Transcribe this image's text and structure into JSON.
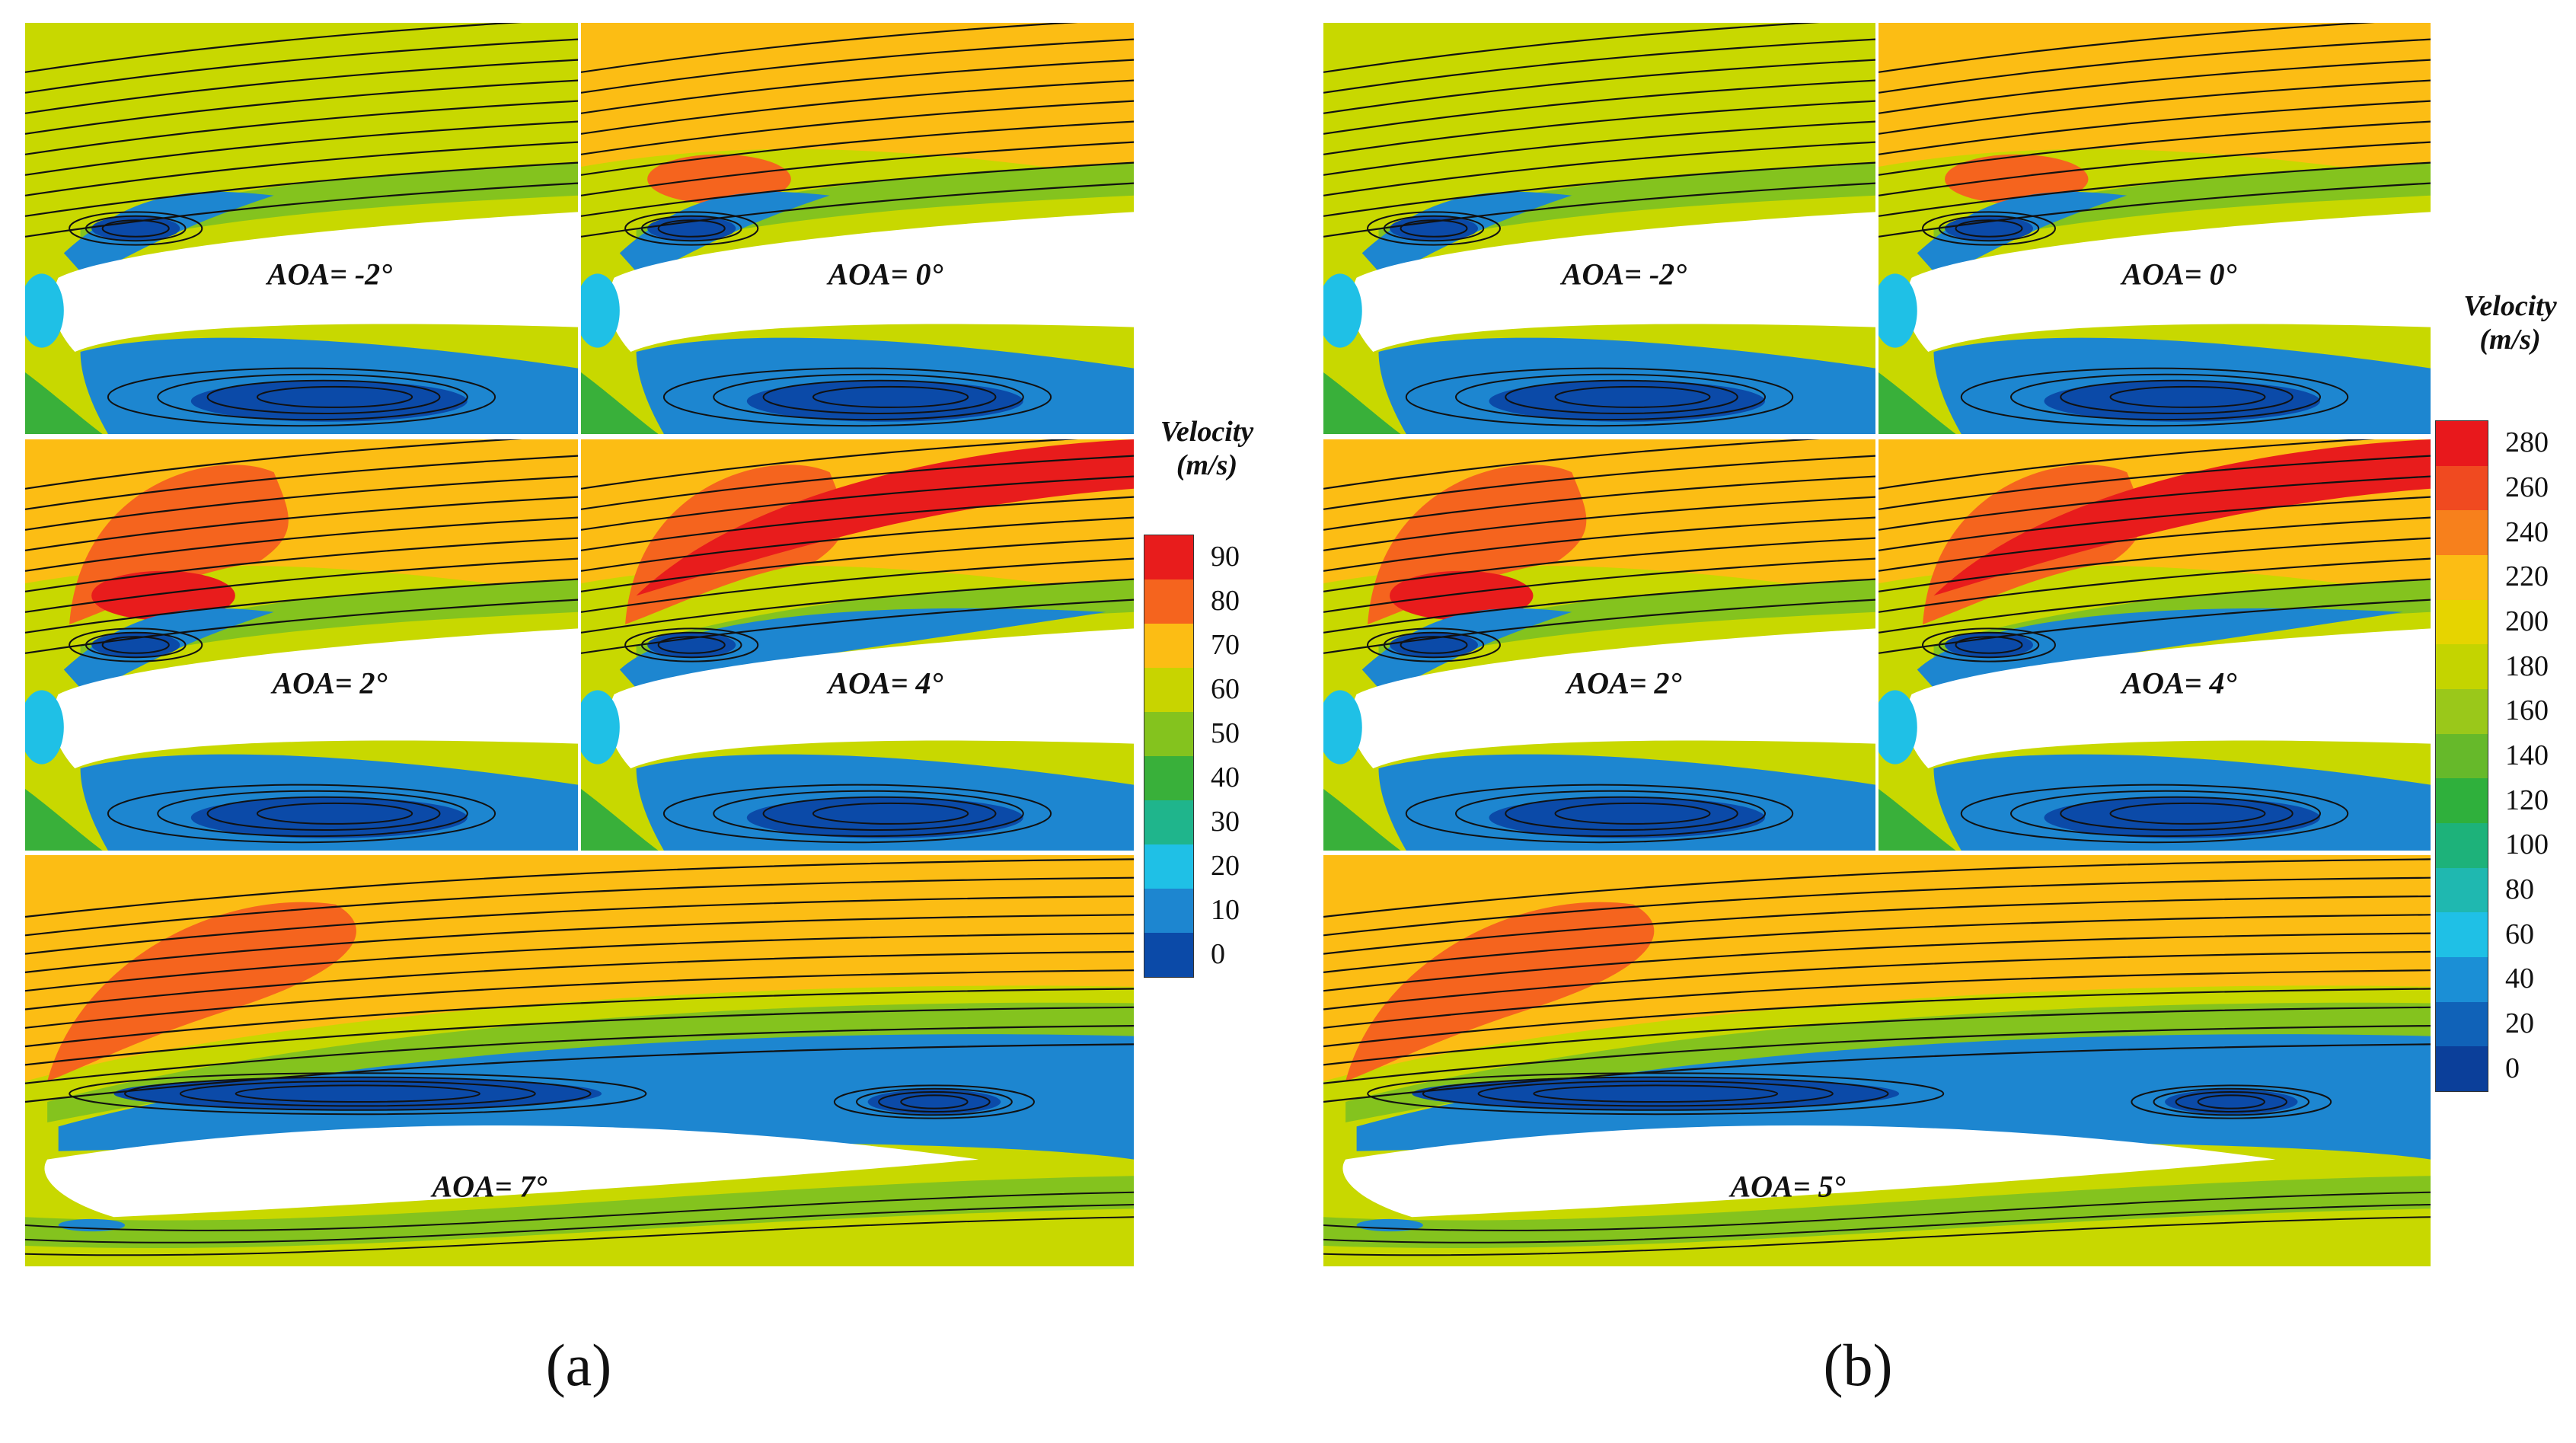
{
  "figure_a": {
    "caption": "(a)",
    "panels": [
      {
        "label": "AOA= -2°",
        "style": "upper",
        "level": 0
      },
      {
        "label": "AOA= 0°",
        "style": "upper",
        "level": 1
      },
      {
        "label": "AOA= 2°",
        "style": "upper",
        "level": 2
      },
      {
        "label": "AOA= 4°",
        "style": "upper",
        "level": 3
      },
      {
        "label": "AOA= 7°",
        "style": "wide",
        "level": 2
      }
    ],
    "legend": {
      "title": "Velocity",
      "unit": "(m/s)",
      "ticks": [
        "90",
        "80",
        "70",
        "60",
        "50",
        "40",
        "30",
        "20",
        "10",
        "0"
      ],
      "colors": [
        "#e81c1c",
        "#f5641e",
        "#fcbd14",
        "#c8d400",
        "#84c31e",
        "#39b03a",
        "#1fb58c",
        "#1fc0e6",
        "#1d86d0",
        "#0b4aa8"
      ]
    }
  },
  "figure_b": {
    "caption": "(b)",
    "panels": [
      {
        "label": "AOA= -2°",
        "style": "upper",
        "level": 0
      },
      {
        "label": "AOA= 0°",
        "style": "upper",
        "level": 1
      },
      {
        "label": "AOA= 2°",
        "style": "upper",
        "level": 2
      },
      {
        "label": "AOA= 4°",
        "style": "upper",
        "level": 3
      },
      {
        "label": "AOA= 5°",
        "style": "wide",
        "level": 1
      }
    ],
    "legend": {
      "title": "Velocity",
      "unit": "(m/s)",
      "ticks": [
        "280",
        "260",
        "240",
        "220",
        "200",
        "180",
        "160",
        "140",
        "120",
        "100",
        "80",
        "60",
        "40",
        "20",
        "0"
      ],
      "colors": [
        "#e8181c",
        "#f04a20",
        "#f7801c",
        "#fcbd14",
        "#e6d400",
        "#c4d400",
        "#9ac81a",
        "#66b92a",
        "#2fb03c",
        "#1db27a",
        "#1fb8b0",
        "#1fc0e6",
        "#1b8fd6",
        "#1062b8",
        "#0b3f9a"
      ]
    }
  },
  "palette": {
    "red": "#e81c1c",
    "orange": "#f5641e",
    "yellow": "#fcbd14",
    "yellowgreen": "#c8d800",
    "green": "#84c31e",
    "darkgreen": "#39b03a",
    "cyan": "#1fc0e6",
    "blue": "#1d86d0",
    "darkblue": "#0b4aa8",
    "streamline": "#111111"
  }
}
